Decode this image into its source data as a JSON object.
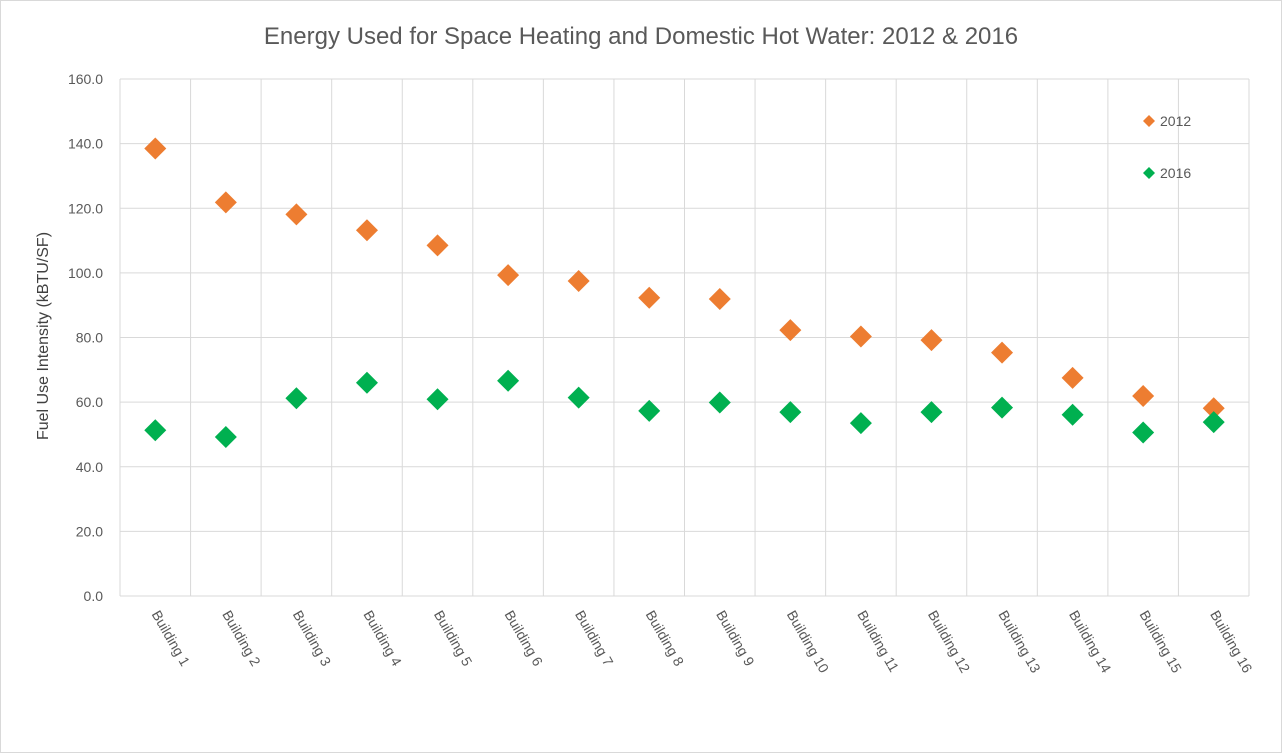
{
  "colors": {
    "series_2012": "#ed7d31",
    "series_2016": "#00b050",
    "gridline": "#d9d9d9",
    "text": "#595959"
  },
  "chart_data": {
    "type": "scatter",
    "title": "Energy Used for Space Heating and Domestic Hot Water: 2012 & 2016",
    "xlabel": "",
    "ylabel": "Fuel Use Intensity (kBTU/SF)",
    "ylim": [
      0,
      160
    ],
    "y_ticks": [
      "0.0",
      "20.0",
      "40.0",
      "60.0",
      "80.0",
      "100.0",
      "120.0",
      "140.0",
      "160.0"
    ],
    "grid": true,
    "legend_position": "top-right",
    "marker": "diamond",
    "categories": [
      "Building 1",
      "Building 2",
      "Building 3",
      "Building 4",
      "Building 5",
      "Building 6",
      "Building 7",
      "Building 8",
      "Building 9",
      "Building 10",
      "Building 11",
      "Building 12",
      "Building 13",
      "Building 14",
      "Building 15",
      "Building 16"
    ],
    "series": [
      {
        "name": "2012",
        "color": "#ed7d31",
        "values": [
          138.5,
          121.8,
          118.1,
          113.2,
          108.5,
          99.3,
          97.5,
          92.3,
          91.9,
          82.3,
          80.3,
          79.2,
          75.3,
          67.5,
          61.9,
          58.1
        ]
      },
      {
        "name": "2016",
        "color": "#00b050",
        "values": [
          51.3,
          49.2,
          61.2,
          66.0,
          60.9,
          66.6,
          61.4,
          57.3,
          59.9,
          56.9,
          53.5,
          56.9,
          58.3,
          56.1,
          50.6,
          53.8
        ]
      }
    ]
  }
}
